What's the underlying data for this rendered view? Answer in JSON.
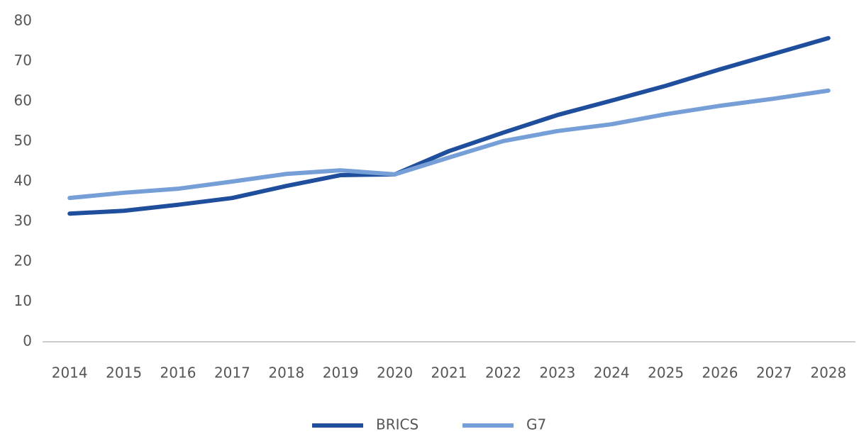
{
  "chart_data": {
    "type": "line",
    "categories": [
      "2014",
      "2015",
      "2016",
      "2017",
      "2018",
      "2019",
      "2020",
      "2021",
      "2022",
      "2023",
      "2024",
      "2025",
      "2026",
      "2027",
      "2028"
    ],
    "series": [
      {
        "name": "BRICS",
        "color": "#1f4e9c",
        "values": [
          32.0,
          32.7,
          34.2,
          35.9,
          38.9,
          41.6,
          41.8,
          47.6,
          52.2,
          56.6,
          60.2,
          63.9,
          68.0,
          71.9,
          75.8
        ]
      },
      {
        "name": "G7",
        "color": "#759fd6",
        "values": [
          35.9,
          37.2,
          38.2,
          40.0,
          41.9,
          42.8,
          41.8,
          46.0,
          50.1,
          52.6,
          54.3,
          56.8,
          58.9,
          60.7,
          62.7
        ]
      }
    ],
    "ylim": [
      0,
      80
    ],
    "yticks": [
      0,
      10,
      20,
      30,
      40,
      50,
      60,
      70,
      80
    ],
    "grid": false,
    "legend": "bottom"
  }
}
